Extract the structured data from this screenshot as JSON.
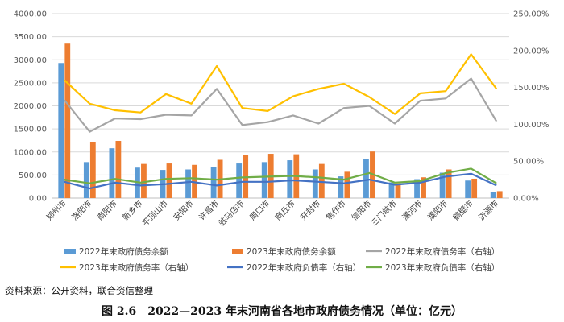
{
  "source": "资料来源：公开资料，联合资信整理",
  "caption": "图 2.6　2022—2023 年末河南省各地市政府债务情况（单位：亿元）",
  "chart_data": {
    "type": "bar+line",
    "categories": [
      "郑州市",
      "洛阳市",
      "南阳市",
      "新乡市",
      "平顶山市",
      "安阳市",
      "许昌市",
      "驻马店市",
      "周口市",
      "商丘市",
      "开封市",
      "焦作市",
      "信阳市",
      "三门峡市",
      "漯河市",
      "濮阳市",
      "鹤壁市",
      "济源市"
    ],
    "y_left": {
      "min": 0,
      "max": 4000,
      "step": 500,
      "ticks": [
        "0.00",
        "500.00",
        "1000.00",
        "1500.00",
        "2000.00",
        "2500.00",
        "3000.00",
        "3500.00",
        "4000.00"
      ]
    },
    "y_right": {
      "min": 0,
      "max": 250,
      "step": 50,
      "ticks": [
        "0.00%",
        "50.00%",
        "100.00%",
        "150.00%",
        "200.00%",
        "250.00%"
      ]
    },
    "series": [
      {
        "name": "2022年末政府债务余额",
        "type": "bar",
        "axis": "left",
        "color": "#5B9BD5",
        "values": [
          2930,
          780,
          1080,
          660,
          610,
          620,
          680,
          750,
          780,
          820,
          620,
          470,
          850,
          340,
          410,
          550,
          380,
          130
        ]
      },
      {
        "name": "2023年末政府债务余额",
        "type": "bar",
        "axis": "left",
        "color": "#ED7D31",
        "values": [
          3350,
          1210,
          1240,
          740,
          750,
          720,
          830,
          940,
          960,
          950,
          740,
          570,
          1010,
          320,
          450,
          620,
          420,
          150
        ]
      },
      {
        "name": "2022年末政府债务率（右轴）",
        "type": "line",
        "axis": "right",
        "color": "#A5A5A5",
        "values": [
          133,
          90,
          108,
          107,
          113,
          112,
          148,
          99,
          103,
          112,
          101,
          122,
          125,
          101,
          132,
          135,
          162,
          104
        ]
      },
      {
        "name": "2023年末政府债务率（右轴）",
        "type": "line",
        "axis": "right",
        "color": "#FFC000",
        "values": [
          160,
          128,
          119,
          116,
          141,
          128,
          179,
          122,
          118,
          138,
          148,
          155,
          137,
          114,
          142,
          145,
          195,
          148
        ]
      },
      {
        "name": "2022年末政府负债率（右轴）",
        "type": "line",
        "axis": "right",
        "color": "#4472C4",
        "values": [
          22,
          13,
          21,
          17,
          19,
          22,
          17,
          22,
          22,
          24,
          22,
          20,
          25,
          18,
          21,
          29,
          33,
          17
        ]
      },
      {
        "name": "2023年末政府负债率（右轴）",
        "type": "line",
        "axis": "right",
        "color": "#70AD47",
        "values": [
          25,
          20,
          26,
          21,
          26,
          27,
          25,
          28,
          29,
          30,
          28,
          25,
          34,
          21,
          23,
          34,
          40,
          20
        ]
      }
    ],
    "legend_position": "bottom",
    "grid": true
  }
}
